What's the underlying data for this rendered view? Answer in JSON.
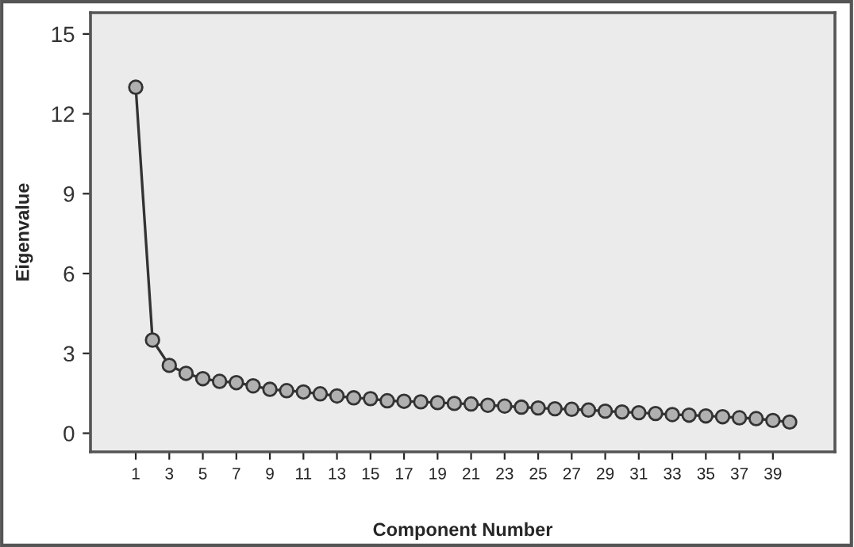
{
  "chart_data": {
    "type": "line",
    "xlabel": "Component Number",
    "ylabel": "Eigenvalue",
    "x": [
      1,
      2,
      3,
      4,
      5,
      6,
      7,
      8,
      9,
      10,
      11,
      12,
      13,
      14,
      15,
      16,
      17,
      18,
      19,
      20,
      21,
      22,
      23,
      24,
      25,
      26,
      27,
      28,
      29,
      30,
      31,
      32,
      33,
      34,
      35,
      36,
      37,
      38,
      39,
      40
    ],
    "series": [
      {
        "color": "#333333",
        "values": [
          13.0,
          3.5,
          2.55,
          2.25,
          2.05,
          1.95,
          1.9,
          1.78,
          1.65,
          1.6,
          1.55,
          1.48,
          1.4,
          1.33,
          1.3,
          1.22,
          1.2,
          1.18,
          1.15,
          1.12,
          1.1,
          1.05,
          1.02,
          0.98,
          0.95,
          0.92,
          0.9,
          0.87,
          0.83,
          0.8,
          0.77,
          0.74,
          0.7,
          0.68,
          0.65,
          0.62,
          0.58,
          0.55,
          0.48,
          0.42
        ]
      }
    ],
    "xlim": [
      -1.7,
      42.7
    ],
    "xticks": [
      1,
      3,
      5,
      7,
      9,
      11,
      13,
      15,
      17,
      19,
      21,
      23,
      25,
      27,
      29,
      31,
      33,
      35,
      37,
      39
    ],
    "ylim": [
      -0.7,
      15.8
    ],
    "yticks": [
      0,
      3,
      6,
      9,
      12,
      15
    ],
    "marker": "circle",
    "line_style": "solid",
    "grid": false,
    "legend": false
  }
}
